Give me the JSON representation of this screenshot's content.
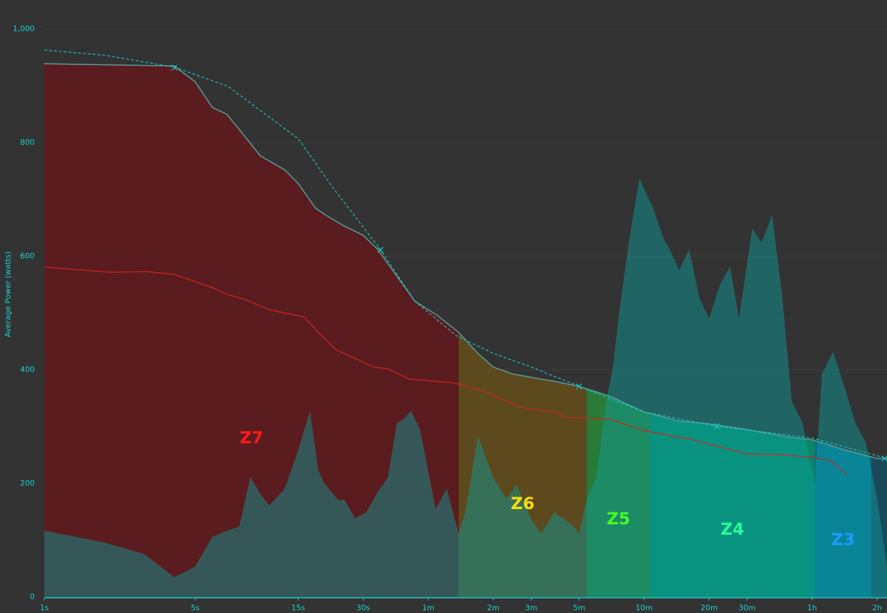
{
  "chart_data": {
    "type": "line",
    "y_label": "Average Power (watts)",
    "log_x": true,
    "grid": true,
    "background": "#333333",
    "xlim": [
      1,
      8000
    ],
    "ylim": [
      0,
      1000
    ],
    "xticks": [
      {
        "value": 1,
        "label": "1s"
      },
      {
        "value": 5,
        "label": "5s"
      },
      {
        "value": 15,
        "label": "15s"
      },
      {
        "value": 30,
        "label": "30s"
      },
      {
        "value": 60,
        "label": "1m"
      },
      {
        "value": 120,
        "label": "2m"
      },
      {
        "value": 180,
        "label": "3m"
      },
      {
        "value": 300,
        "label": "5m"
      },
      {
        "value": 600,
        "label": "10m"
      },
      {
        "value": 1200,
        "label": "20m"
      },
      {
        "value": 1800,
        "label": "30m"
      },
      {
        "value": 3600,
        "label": "1h"
      },
      {
        "value": 7200,
        "label": "2h"
      }
    ],
    "yticks": [
      0,
      200,
      400,
      600,
      800,
      {
        "value": 1000,
        "label": "1,000"
      }
    ],
    "zones": [
      {
        "label": "Z7",
        "from": 1,
        "to": 83,
        "color": "#5a1c1e",
        "label_color": "#ff1a1a"
      },
      {
        "label": "Z6",
        "from": 83,
        "to": 325,
        "color": "#5c4a1e",
        "label_color": "#ffdd00"
      },
      {
        "label": "Z5",
        "from": 325,
        "to": 640,
        "color": "#2a7a38",
        "label_color": "#44ff22"
      },
      {
        "label": "Z4",
        "from": 640,
        "to": 3700,
        "color": "#0a8766",
        "label_color": "#22ff99"
      },
      {
        "label": "Z3",
        "from": 3700,
        "to": 6770,
        "color": "#0a7090",
        "label_color": "#1a9cff"
      },
      {
        "label": null,
        "from": 6770,
        "to": 8000,
        "color": "#1a4a5a",
        "label_color": null
      }
    ],
    "series": [
      {
        "style": "area",
        "color": "#0aa0a0",
        "x": [
          1,
          1.9,
          2.9,
          4,
          5,
          6,
          7,
          8,
          9,
          10,
          11,
          13,
          15,
          17,
          18.6,
          20,
          23,
          24.6,
          27.5,
          31,
          35,
          39,
          43,
          46,
          50,
          55,
          60,
          65,
          73,
          83,
          89,
          102,
          120,
          138,
          154,
          180,
          200,
          230,
          280,
          300,
          325,
          360,
          400,
          430,
          460,
          515,
          570,
          660,
          740,
          790,
          870,
          970,
          1080,
          1200,
          1350,
          1500,
          1650,
          1900,
          2100,
          2350,
          2600,
          2900,
          3250,
          3700,
          4000,
          4500,
          5100,
          5700,
          6400,
          7200,
          7600,
          8000
        ],
        "values": [
          117,
          96,
          76,
          35,
          54,
          106,
          117,
          124,
          212,
          182,
          161,
          191,
          259,
          328,
          222,
          198,
          171,
          171,
          139,
          149,
          185,
          210,
          307,
          313,
          328,
          295,
          222,
          155,
          191,
          112,
          149,
          283,
          210,
          173,
          198,
          137,
          112,
          149,
          127,
          112,
          173,
          210,
          344,
          405,
          502,
          637,
          737,
          685,
          630,
          612,
          576,
          612,
          527,
          490,
          551,
          582,
          490,
          649,
          624,
          673,
          539,
          344,
          307,
          198,
          393,
          432,
          368,
          307,
          271,
          173,
          112,
          51
        ]
      },
      {
        "style": "zone-line",
        "color": "#5a9e9e",
        "x": [
          1,
          4,
          5,
          6,
          7,
          8,
          10,
          13,
          15,
          18,
          20,
          24,
          30,
          35,
          42,
          52,
          66,
          83,
          102,
          120,
          147,
          180,
          230,
          300,
          415,
          600,
          870,
          1200,
          1800,
          2660,
          3600,
          5100,
          7200,
          8000
        ],
        "values": [
          939,
          935,
          907,
          862,
          850,
          823,
          777,
          752,
          728,
          685,
          673,
          655,
          637,
          612,
          570,
          521,
          496,
          466,
          429,
          405,
          393,
          387,
          380,
          371,
          354,
          326,
          310,
          305,
          295,
          283,
          277,
          259,
          244,
          244
        ]
      },
      {
        "style": "dashed",
        "color": "#1ac8c8",
        "x": [
          1,
          1.9,
          4,
          7.1,
          15,
          21.6,
          36,
          52,
          81,
          120,
          180,
          300,
          600,
          1300,
          3600,
          8000
        ],
        "values": [
          963,
          954,
          933,
          899,
          807,
          722,
          612,
          521,
          460,
          429,
          405,
          371,
          326,
          301,
          280,
          244
        ]
      },
      {
        "style": "line",
        "color": "#d02424",
        "x": [
          1,
          2,
          3,
          4,
          6,
          7,
          8.5,
          11,
          16,
          18.6,
          22.5,
          33.7,
          39,
          48.8,
          79,
          110,
          160,
          230,
          255,
          415,
          600,
          1000,
          1800,
          2600,
          3600,
          4400,
          5200
        ],
        "values": [
          581,
          572,
          573,
          568,
          545,
          533,
          524,
          506,
          493,
          466,
          435,
          405,
          402,
          384,
          377,
          362,
          334,
          326,
          317,
          313,
          293,
          277,
          252,
          251,
          246,
          240,
          216
        ]
      },
      {
        "style": "markers",
        "color": "#1ac8c8",
        "x": [
          4,
          36,
          300,
          1300,
          7800
        ],
        "values": [
          932,
          611,
          371,
          301,
          244
        ]
      }
    ]
  }
}
